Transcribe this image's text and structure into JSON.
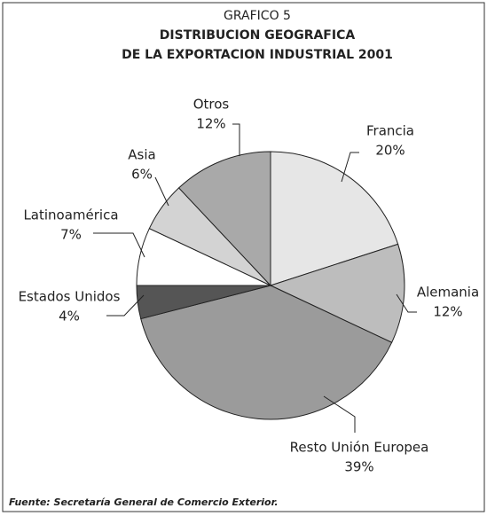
{
  "chart_data": {
    "type": "pie",
    "title": [
      "GRAFICO 5",
      "DISTRIBUCION GEOGRAFICA",
      "DE LA EXPORTACION INDUSTRIAL 2001"
    ],
    "categories": [
      "Francia",
      "Alemania",
      "Resto Unión Europea",
      "Estados Unidos",
      "Latinoamérica",
      "Asia",
      "Otros"
    ],
    "values": [
      20,
      12,
      39,
      4,
      7,
      6,
      12
    ],
    "value_labels": [
      "20%",
      "12%",
      "39%",
      "4%",
      "7%",
      "6%",
      "12%"
    ],
    "colors": [
      "#e6e6e6",
      "#bdbdbd",
      "#9b9b9b",
      "#555555",
      "#ffffff",
      "#d3d3d3",
      "#a9a9a9"
    ],
    "source": "Fuente: Secretaría General de Comercio Exterior."
  }
}
